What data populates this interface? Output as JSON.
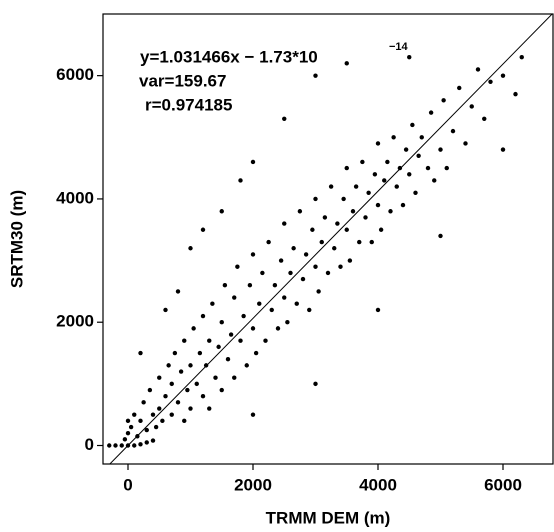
{
  "chart_data": {
    "type": "scatter",
    "xlabel": "TRMM DEM (m)",
    "ylabel": "SRTM30 (m)",
    "annotations": [
      "y=1.031466x − 1.73*10",
      "−14",
      "var=159.67",
      "r=0.974185"
    ],
    "fit": {
      "slope": 1.031466,
      "intercept": -1.73e-14
    },
    "xlim": [
      -400,
      6800
    ],
    "ylim": [
      -300,
      7000
    ],
    "xticks": [
      0,
      2000,
      4000,
      6000
    ],
    "yticks": [
      0,
      2000,
      4000,
      6000
    ],
    "color": "#000000",
    "x": [
      -300,
      -200,
      -100,
      0,
      100,
      200,
      300,
      400,
      0,
      0,
      -50,
      50,
      100,
      150,
      200,
      250,
      300,
      350,
      400,
      450,
      500,
      500,
      550,
      600,
      650,
      700,
      700,
      750,
      800,
      850,
      900,
      900,
      950,
      1000,
      1000,
      1050,
      1100,
      1150,
      1200,
      1200,
      1250,
      1300,
      1300,
      1350,
      1400,
      1450,
      1500,
      1500,
      1550,
      1600,
      1650,
      1700,
      1700,
      1750,
      1800,
      1850,
      1900,
      1950,
      2000,
      2000,
      2050,
      2100,
      2150,
      2200,
      2250,
      2300,
      2350,
      2400,
      2450,
      2500,
      2500,
      2550,
      2600,
      2650,
      2700,
      2750,
      2800,
      2850,
      2900,
      2950,
      3000,
      3000,
      3050,
      3100,
      3150,
      3200,
      3250,
      3300,
      3350,
      3400,
      3450,
      3500,
      3500,
      3550,
      3600,
      3650,
      3700,
      3750,
      3800,
      3850,
      3900,
      3950,
      4000,
      4000,
      4050,
      4100,
      4150,
      4200,
      4250,
      4300,
      4350,
      4400,
      4450,
      4500,
      4550,
      4600,
      4650,
      4700,
      4800,
      4850,
      4900,
      5000,
      5050,
      5100,
      5200,
      5300,
      5400,
      5500,
      5600,
      5700,
      5800,
      6000,
      6200,
      6300,
      1000,
      1500,
      2000,
      2500,
      3000,
      3500,
      800,
      3000,
      4000,
      5000,
      2000,
      6000,
      4500,
      1200,
      1800,
      200,
      600
    ],
    "values": [
      0,
      0,
      0,
      0,
      0,
      20,
      50,
      80,
      200,
      400,
      100,
      300,
      500,
      150,
      400,
      700,
      250,
      900,
      500,
      300,
      1100,
      600,
      400,
      800,
      1300,
      500,
      1000,
      1500,
      700,
      1200,
      400,
      1700,
      900,
      1300,
      600,
      1900,
      1000,
      1500,
      800,
      2100,
      1300,
      1700,
      600,
      2300,
      1100,
      1600,
      2000,
      900,
      2600,
      1400,
      1800,
      1100,
      2400,
      2900,
      1700,
      2100,
      1300,
      2600,
      1900,
      3100,
      1500,
      2300,
      2800,
      1700,
      3300,
      2200,
      2600,
      1900,
      3000,
      2400,
      3600,
      2000,
      2800,
      3200,
      2300,
      3800,
      2700,
      3100,
      2200,
      3500,
      2900,
      4000,
      2500,
      3300,
      3700,
      2800,
      4200,
      3200,
      3600,
      2900,
      4000,
      3500,
      4500,
      3000,
      3800,
      4200,
      3300,
      4600,
      3700,
      4100,
      3300,
      4400,
      3900,
      4900,
      3500,
      4300,
      4600,
      3800,
      5000,
      4200,
      4500,
      3900,
      4800,
      4400,
      5200,
      4100,
      4700,
      5000,
      4500,
      5400,
      4300,
      4800,
      5600,
      4500,
      5100,
      5800,
      4900,
      5500,
      6100,
      5300,
      5900,
      6000,
      5700,
      6300,
      3200,
      3800,
      4600,
      5300,
      6000,
      6200,
      2500,
      1000,
      2200,
      3400,
      500,
      4800,
      6300,
      3500,
      4300,
      1500,
      2200
    ]
  }
}
